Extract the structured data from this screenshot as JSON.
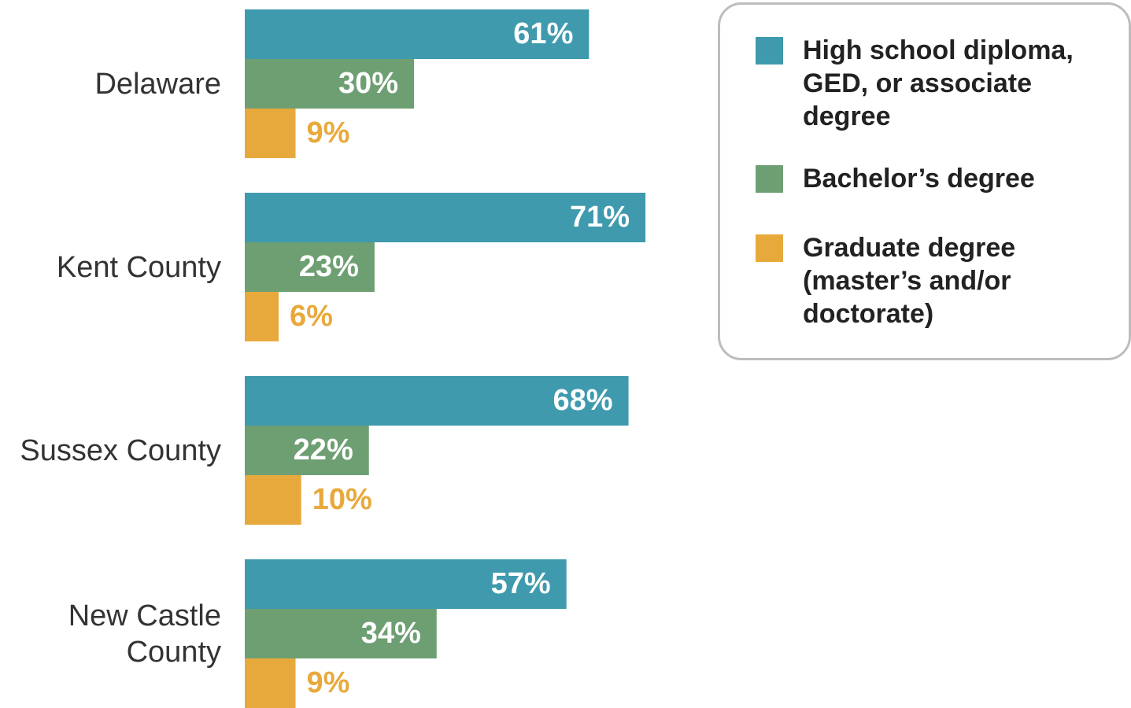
{
  "chart_data": {
    "type": "hbar",
    "categories": [
      "Delaware",
      "Kent County",
      "Sussex County",
      "New Castle County"
    ],
    "series": [
      {
        "name": "High school diploma, GED, or associate degree",
        "color": "#3f9aae",
        "values": [
          61,
          71,
          68,
          57
        ],
        "value_labels": [
          "61%",
          "71%",
          "68%",
          "57%"
        ]
      },
      {
        "name": "Bachelor’s degree",
        "color": "#6e9f73",
        "values": [
          30,
          23,
          22,
          34
        ],
        "value_labels": [
          "30%",
          "23%",
          "22%",
          "34%"
        ]
      },
      {
        "name": "Graduate degree (master’s and/or doctorate)",
        "color": "#e8a93c",
        "values": [
          9,
          6,
          10,
          9
        ],
        "value_labels": [
          "9%",
          "6%",
          "10%",
          "9%"
        ]
      }
    ]
  }
}
